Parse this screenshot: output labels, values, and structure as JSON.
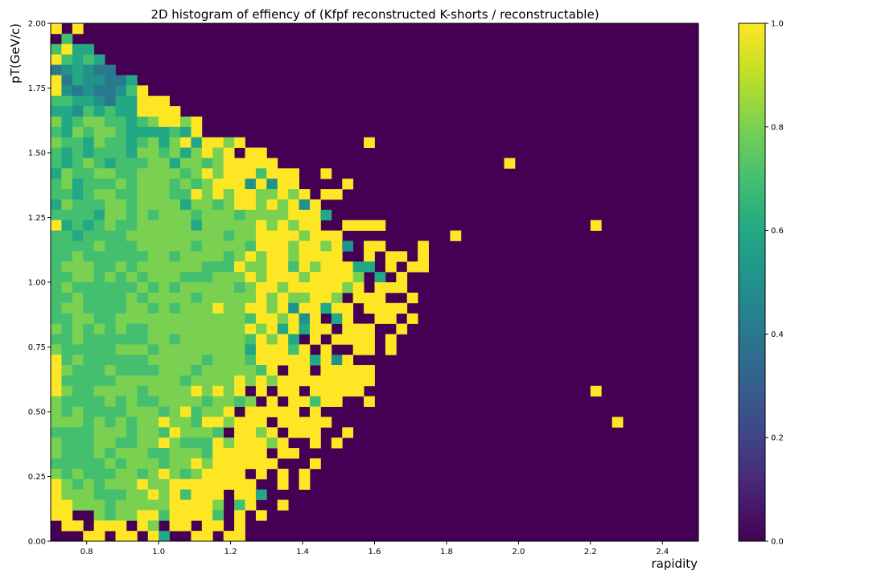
{
  "chart_data": {
    "type": "heatmap",
    "title": "2D histogram of effiency of (Kfpf reconstructed K-shorts / reconstructable)",
    "xlabel": "rapidity",
    "ylabel": "pT(GeV/c)",
    "xlim": [
      0.7,
      2.5
    ],
    "ylim": [
      0.0,
      2.0
    ],
    "x_ticks": [
      "0.8",
      "1.0",
      "1.2",
      "1.4",
      "1.6",
      "1.8",
      "2.0",
      "2.2",
      "2.4"
    ],
    "y_ticks": [
      "0.00",
      "0.25",
      "0.50",
      "0.75",
      "1.00",
      "1.25",
      "1.50",
      "1.75",
      "2.00"
    ],
    "colorbar": {
      "colormap": "viridis",
      "range": [
        0.0,
        1.0
      ],
      "ticks": [
        "0.0",
        "0.2",
        "0.4",
        "0.6",
        "0.8",
        "1.0"
      ]
    },
    "grid": false,
    "bins": {
      "x_count": 60,
      "y_count": 50
    },
    "cell_values_encoding": "rows top-to-bottom (pT 2.00 -> 0.00); each char: 0-9 = efficiency/10, A = 1.0, '.' = 0",
    "cells": [
      "A.A.........................................................",
      ".7..........................................................",
      "7A66........................................................",
      "A7676.......................................................",
      "456544......................................................",
      "A4655446....................................................",
      "A5454457A...................................................",
      "77665466AAA.................................................",
      "66576766AAAA................................................",
      "8678877678AA8A..............................................",
      "7687887666676A..............................................",
      "877687767868A6AA8A...........A..............................",
      "76767776887868A8A.AA........................................",
      "7678767778868878AAAAA.....................A.................",
      "68778877888878A8AAA7AAA..A................................. ",
      "786777878887878AAA5A5AA....A...............................",
      "7767887788877A8A8AA88A8A.AA.................................",
      "68777887888868878AA8A8A5A...................................",
      "7777688787888788878888AAA6..................................",
      "A676787788888688888A8A8AA..AAAA...................A..........",
      "7767777888888888788AAAA8AAA..........A.......................",
      "7777877788888788887AAA8AA8A5.AA...A..........................",
      "778777777887888878A8AA8AAAA..A.AA.A..........................",
      "78887787888888777A88AA7A8AAA66.A.AA..........................",
      "778878787888777888A8AAA8AAAA8.6.A............................",
      "7877777787878888878AA8AAAAA8A.AAA............................",
      "7787777878888788888A8A88AA8.AAA..A...........................",
      "788777788787888A88AA8A5AA6AA.AAAA............................",
      "7788778888888888887AA8A5A.6A..AA.A...........................",
      "878787877888888888A8A6A6AA.AAA..A............................",
      "7787777778878888887A8A6.A.AAAA.A.............................",
      "8777778887888888886AAA7A.A..AA.A.............................",
      "A787777778888878887AAAAA6A5A...................................",
      "A8777877778887888887A.AA.AAAAA...............................",
      "A7777788888878888A8A8AAAAAAAAA...............................",
      "A877888878888A8A8A.A.AA.AAAAA.....................A..........",
      "8777787877888878878.A.AA7AA..A...............................",
      "878777788878A788A.AAAAA.A...................................",
      "8887878788A887AA8AAA.AAAAA..........................A.........",
      "77778887887A8887.AA8A.AAA..A...................................",
      "8777887788A8777A8AAA8A..A.A.................................",
      "877787888778887AAAAA.AA.....................................",
      "7777787888788A8AAAAAA...A......................................",
      "8787778878A878AAAA.A.A.A.....................................",
      "A8787888A88AAAAAAAA..A.A..............................",
      "A88877788A8A7AAA.AA6...........................................",
      "AA888788888AAAA8.7A..A......................................",
      "AA..8788AA7AAAA7.A.A..........................................",
      ".AA.AAA.A8.AA.AA.A.............................................",
      "...AA.AA.A6..AA.AA.............................................."
    ]
  }
}
